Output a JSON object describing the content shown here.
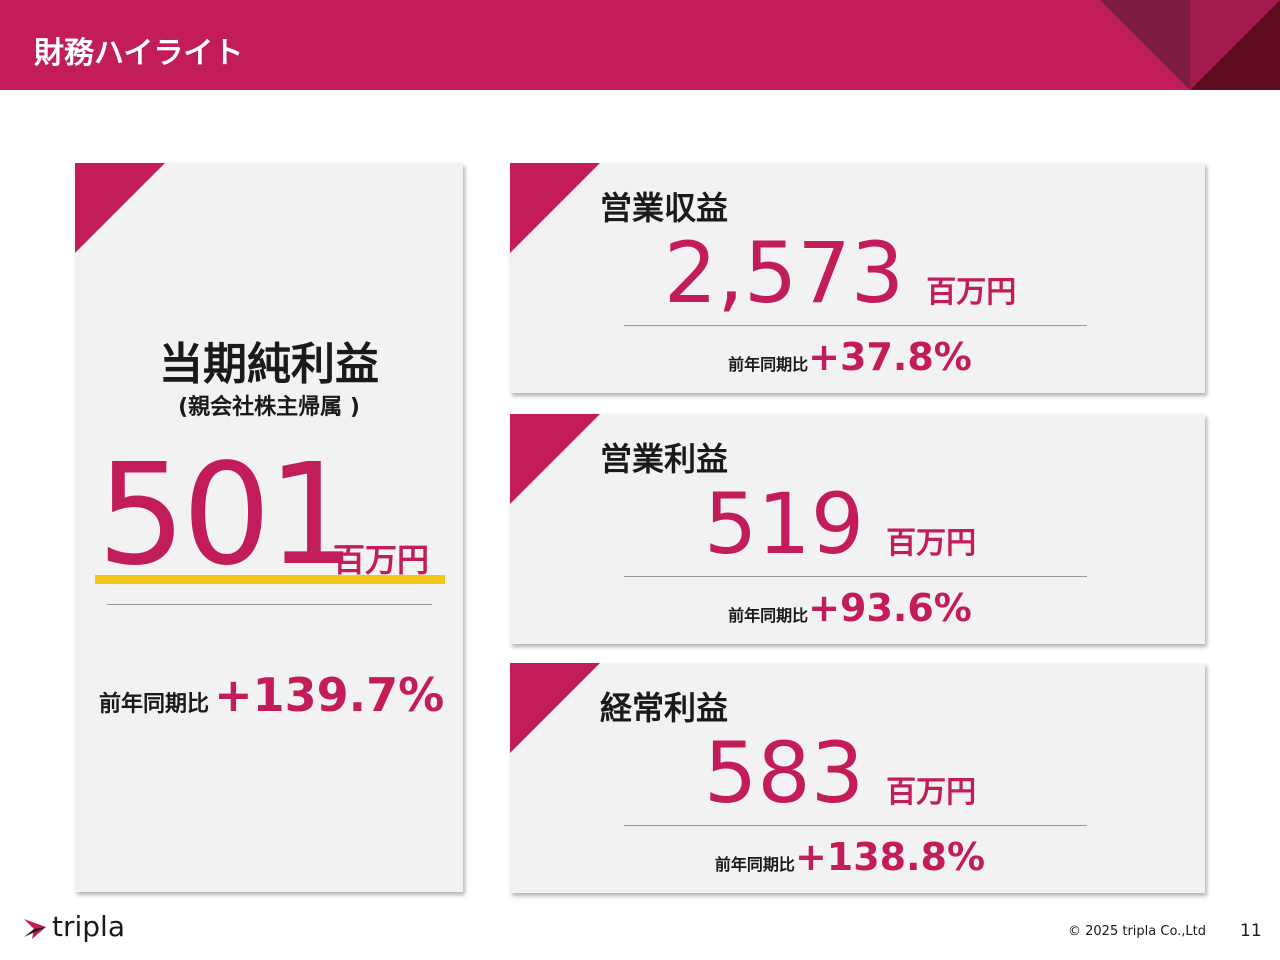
{
  "header": {
    "title": "財務ハイライト"
  },
  "main_card": {
    "title": "当期純利益",
    "subtitle": "(親会社株主帰属 )",
    "value": "501",
    "unit": "百万円",
    "comparison_label": "前年同期比",
    "change": "+139.7%"
  },
  "cards": [
    {
      "title": "営業収益",
      "value": "2,573",
      "unit": "百万円",
      "comparison_label": "前年同期比",
      "change": "+37.8%"
    },
    {
      "title": "営業利益",
      "value": "519",
      "unit": "百万円",
      "comparison_label": "前年同期比",
      "change": "+93.6%"
    },
    {
      "title": "経常利益",
      "value": "583",
      "unit": "百万円",
      "comparison_label": "前年同期比",
      "change": "+138.8%"
    }
  ],
  "footer": {
    "logo": "tripla",
    "copyright": "© 2025 tripla Co.,Ltd",
    "page": "11"
  }
}
